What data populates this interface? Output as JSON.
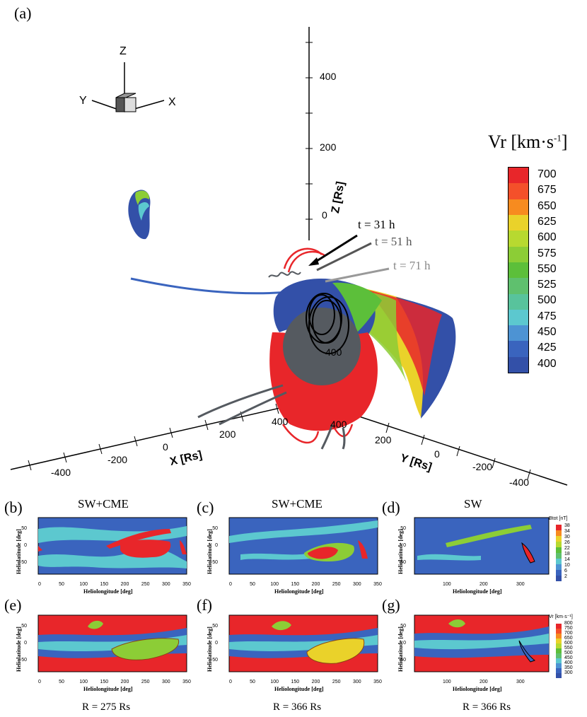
{
  "figure": {
    "panel_a_label": "(a)",
    "colorbar": {
      "title": "Vr [km·s",
      "title_sup": "-1",
      "title_end": "]",
      "ticks": [
        "700",
        "675",
        "650",
        "625",
        "600",
        "575",
        "550",
        "525",
        "500",
        "475",
        "450",
        "425",
        "400"
      ],
      "colors": [
        "#e8262a",
        "#f4502a",
        "#f78b1f",
        "#ead22a",
        "#b7d930",
        "#8ccd36",
        "#5cbf3a",
        "#5fc06e",
        "#58c39c",
        "#5cc8cf",
        "#4d93d3",
        "#3a64be",
        "#3350a8"
      ]
    },
    "triad": {
      "z": "Z",
      "y": "Y",
      "x": "X"
    },
    "axes3d": {
      "z_label": "Z [Rs]",
      "x_label": "X [Rs]",
      "y_label": "Y [Rs]",
      "z_ticks": [
        "400",
        "200",
        "0"
      ],
      "x_ticks": [
        "-400",
        "-200",
        "0",
        "200",
        "400"
      ],
      "y_ticks": [
        "400",
        "200",
        "0",
        "-200",
        "-400"
      ],
      "inner_ticks": [
        "400",
        "400"
      ]
    },
    "times": [
      "t = 31 h",
      "t = 51 h",
      "t = 71 h"
    ],
    "panels": [
      {
        "letter": "(b)",
        "title": "SW+CME"
      },
      {
        "letter": "(c)",
        "title": "SW+CME"
      },
      {
        "letter": "(d)",
        "title": "SW"
      },
      {
        "letter": "(e)",
        "title": ""
      },
      {
        "letter": "(f)",
        "title": ""
      },
      {
        "letter": "(g)",
        "title": ""
      }
    ],
    "small_axes": {
      "ylabel": "Heliolatitude [deg]",
      "xlabel": "Heliolongitude [deg]",
      "xticks": [
        "0",
        "50",
        "100",
        "150",
        "200",
        "250",
        "300",
        "350"
      ],
      "xticks_d": [
        "100",
        "200",
        "300"
      ],
      "yticks": [
        "50",
        "0",
        "-50"
      ]
    },
    "btot_cb": {
      "title": "Btot [nT]",
      "ticks": [
        "38",
        "34",
        "30",
        "26",
        "22",
        "18",
        "14",
        "10",
        "6",
        "2"
      ]
    },
    "vr_small_cb": {
      "title": "Vr [km·s⁻¹]",
      "ticks": [
        "800",
        "750",
        "700",
        "650",
        "600",
        "550",
        "500",
        "450",
        "400",
        "350",
        "300"
      ]
    },
    "r_labels": [
      "R = 275 Rs",
      "R = 366 Rs",
      "R = 366 Rs"
    ]
  }
}
